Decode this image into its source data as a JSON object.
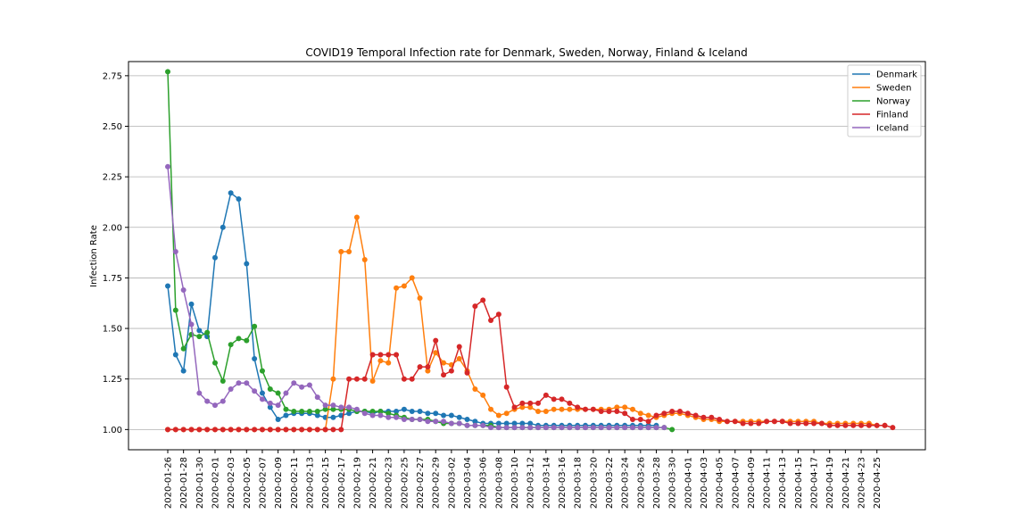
{
  "chart_data": {
    "type": "line",
    "title": "COVID19 Temporal Infection rate for Denmark, Sweden, Norway, Finland & Iceland",
    "xlabel": "",
    "ylabel": "Infection Rate",
    "ylim": [
      0.9,
      2.82
    ],
    "yticks": [
      1.0,
      1.25,
      1.5,
      1.75,
      2.0,
      2.25,
      2.5,
      2.75
    ],
    "grid": "y",
    "legend": "top-right",
    "start_date": "2020-01-26",
    "x_tick_labels": [
      "2020-01-26",
      "2020-01-28",
      "2020-01-30",
      "2020-02-01",
      "2020-02-03",
      "2020-02-05",
      "2020-02-07",
      "2020-02-09",
      "2020-02-11",
      "2020-02-13",
      "2020-02-15",
      "2020-02-17",
      "2020-02-19",
      "2020-02-21",
      "2020-02-23",
      "2020-02-25",
      "2020-02-27",
      "2020-02-29",
      "2020-03-02",
      "2020-03-04",
      "2020-03-06",
      "2020-03-08",
      "2020-03-10",
      "2020-03-12",
      "2020-03-14",
      "2020-03-16",
      "2020-03-18",
      "2020-03-20",
      "2020-03-22",
      "2020-03-24",
      "2020-03-26",
      "2020-03-28",
      "2020-03-30",
      "2020-04-01",
      "2020-04-03",
      "2020-04-05",
      "2020-04-07",
      "2020-04-09",
      "2020-04-11",
      "2020-04-13",
      "2020-04-15",
      "2020-04-17",
      "2020-04-19",
      "2020-04-21",
      "2020-04-23",
      "2020-04-25"
    ],
    "series": [
      {
        "name": "Denmark",
        "color": "#1f77b4",
        "values": [
          1.71,
          1.37,
          1.29,
          1.62,
          1.49,
          1.46,
          1.85,
          2.0,
          2.17,
          2.14,
          1.82,
          1.35,
          1.18,
          1.11,
          1.05,
          1.07,
          1.08,
          1.08,
          1.08,
          1.07,
          1.06,
          1.06,
          1.07,
          1.08,
          1.09,
          1.09,
          1.08,
          1.09,
          1.09,
          1.09,
          1.1,
          1.09,
          1.09,
          1.08,
          1.08,
          1.07,
          1.07,
          1.06,
          1.05,
          1.04,
          1.03,
          1.03,
          1.03,
          1.03,
          1.03,
          1.03,
          1.03,
          1.02,
          1.02,
          1.02,
          1.02,
          1.02,
          1.02,
          1.02,
          1.02,
          1.02,
          1.02,
          1.02,
          1.02,
          1.02,
          1.02,
          1.02,
          1.02
        ]
      },
      {
        "name": "Sweden",
        "color": "#ff7f0e",
        "values": [
          1.0,
          1.0,
          1.0,
          1.0,
          1.0,
          1.0,
          1.0,
          1.0,
          1.0,
          1.0,
          1.0,
          1.0,
          1.0,
          1.0,
          1.0,
          1.0,
          1.0,
          1.0,
          1.0,
          1.0,
          1.0,
          1.25,
          1.88,
          1.88,
          2.05,
          1.84,
          1.24,
          1.34,
          1.33,
          1.7,
          1.71,
          1.75,
          1.65,
          1.29,
          1.38,
          1.33,
          1.32,
          1.35,
          1.29,
          1.2,
          1.17,
          1.1,
          1.07,
          1.08,
          1.1,
          1.11,
          1.11,
          1.09,
          1.09,
          1.1,
          1.1,
          1.1,
          1.1,
          1.1,
          1.1,
          1.1,
          1.1,
          1.11,
          1.11,
          1.1,
          1.08,
          1.07,
          1.06,
          1.07,
          1.08,
          1.08,
          1.07,
          1.06,
          1.05,
          1.05,
          1.04,
          1.04,
          1.04,
          1.04,
          1.04,
          1.04,
          1.04,
          1.04,
          1.04,
          1.04,
          1.04,
          1.04,
          1.04,
          1.03,
          1.03,
          1.03,
          1.03,
          1.03,
          1.03,
          1.03,
          1.02,
          1.02
        ]
      },
      {
        "name": "Norway",
        "color": "#2ca02c",
        "values": [
          2.77,
          1.59,
          1.4,
          1.47,
          1.46,
          1.48,
          1.33,
          1.24,
          1.42,
          1.45,
          1.44,
          1.51,
          1.29,
          1.2,
          1.18,
          1.1,
          1.09,
          1.09,
          1.09,
          1.09,
          1.1,
          1.1,
          1.1,
          1.1,
          1.09,
          1.09,
          1.09,
          1.09,
          1.08,
          1.07,
          1.06,
          1.05,
          1.05,
          1.05,
          1.04,
          1.03,
          1.03,
          1.03,
          1.02,
          1.02,
          1.02,
          1.02,
          1.01,
          1.01,
          1.01,
          1.01,
          1.01,
          1.01,
          1.01,
          1.01,
          1.01,
          1.01,
          1.01,
          1.01,
          1.01,
          1.01,
          1.01,
          1.01,
          1.01,
          1.01,
          1.01,
          1.01,
          1.01,
          1.01,
          1.0
        ]
      },
      {
        "name": "Finland",
        "color": "#d62728",
        "values": [
          1.0,
          1.0,
          1.0,
          1.0,
          1.0,
          1.0,
          1.0,
          1.0,
          1.0,
          1.0,
          1.0,
          1.0,
          1.0,
          1.0,
          1.0,
          1.0,
          1.0,
          1.0,
          1.0,
          1.0,
          1.0,
          1.0,
          1.0,
          1.25,
          1.25,
          1.25,
          1.37,
          1.37,
          1.37,
          1.37,
          1.25,
          1.25,
          1.31,
          1.31,
          1.44,
          1.27,
          1.29,
          1.41,
          1.28,
          1.61,
          1.64,
          1.54,
          1.57,
          1.21,
          1.11,
          1.13,
          1.13,
          1.13,
          1.17,
          1.15,
          1.15,
          1.13,
          1.11,
          1.1,
          1.1,
          1.09,
          1.09,
          1.09,
          1.08,
          1.05,
          1.05,
          1.04,
          1.07,
          1.08,
          1.09,
          1.09,
          1.08,
          1.07,
          1.06,
          1.06,
          1.05,
          1.04,
          1.04,
          1.03,
          1.03,
          1.03,
          1.04,
          1.04,
          1.04,
          1.03,
          1.03,
          1.03,
          1.03,
          1.03,
          1.02,
          1.02,
          1.02,
          1.02,
          1.02,
          1.02,
          1.02,
          1.02,
          1.01
        ]
      },
      {
        "name": "Iceland",
        "color": "#9467bd",
        "values": [
          2.3,
          1.88,
          1.69,
          1.52,
          1.18,
          1.14,
          1.12,
          1.14,
          1.2,
          1.23,
          1.23,
          1.19,
          1.15,
          1.13,
          1.12,
          1.18,
          1.23,
          1.21,
          1.22,
          1.16,
          1.12,
          1.12,
          1.11,
          1.11,
          1.1,
          1.08,
          1.07,
          1.07,
          1.06,
          1.06,
          1.05,
          1.05,
          1.05,
          1.04,
          1.04,
          1.04,
          1.03,
          1.03,
          1.02,
          1.02,
          1.02,
          1.01,
          1.01,
          1.01,
          1.01,
          1.01,
          1.01,
          1.01,
          1.01,
          1.01,
          1.01,
          1.01,
          1.01,
          1.01,
          1.01,
          1.01,
          1.01,
          1.01,
          1.01,
          1.01,
          1.01,
          1.01,
          1.01,
          1.01
        ]
      }
    ]
  }
}
